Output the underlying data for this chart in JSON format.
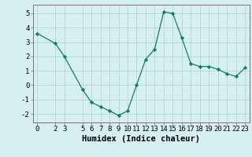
{
  "x": [
    0,
    2,
    3,
    5,
    6,
    7,
    8,
    9,
    10,
    11,
    12,
    13,
    14,
    15,
    16,
    17,
    18,
    19,
    20,
    21,
    22,
    23
  ],
  "y": [
    3.6,
    2.9,
    2.0,
    -0.3,
    -1.2,
    -1.5,
    -1.8,
    -2.1,
    -1.8,
    0.0,
    1.8,
    2.5,
    5.1,
    5.0,
    3.3,
    1.5,
    1.3,
    1.3,
    1.1,
    0.8,
    0.6,
    1.2
  ],
  "line_color": "#1a7a6a",
  "marker_color": "#1a7a6a",
  "bg_color": "#d6efef",
  "grid_color": "#b0d8d8",
  "xlabel": "Humidex (Indice chaleur)",
  "xlim": [
    -0.5,
    23.5
  ],
  "ylim": [
    -2.6,
    5.6
  ],
  "yticks": [
    -2,
    -1,
    0,
    1,
    2,
    3,
    4,
    5
  ],
  "xticks": [
    0,
    2,
    3,
    5,
    6,
    7,
    8,
    9,
    10,
    11,
    12,
    13,
    14,
    15,
    16,
    17,
    18,
    19,
    20,
    21,
    22,
    23
  ],
  "xlabel_fontsize": 7.5,
  "tick_fontsize": 6.5
}
